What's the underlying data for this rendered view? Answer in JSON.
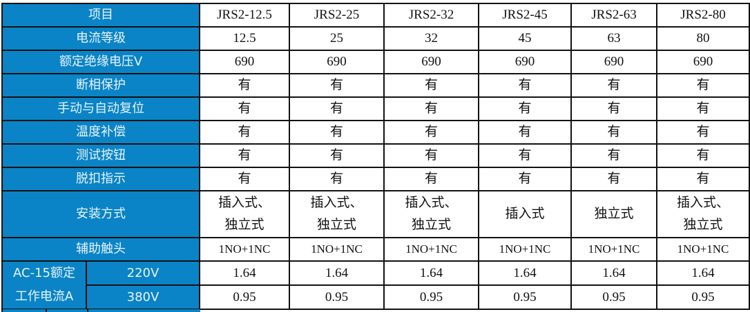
{
  "header": {
    "label": "项目",
    "models": [
      "JRS2-12.5",
      "JRS2-25",
      "JRS2-32",
      "JRS2-45",
      "JRS2-63",
      "JRS2-80"
    ]
  },
  "rows": [
    {
      "label": "电流等级",
      "values": [
        "12.5",
        "25",
        "32",
        "45",
        "63",
        "80"
      ]
    },
    {
      "label": "额定绝缘电压V",
      "values": [
        "690",
        "690",
        "690",
        "690",
        "690",
        "690"
      ]
    },
    {
      "label": "断相保护",
      "values": [
        "有",
        "有",
        "有",
        "有",
        "有",
        "有"
      ]
    },
    {
      "label": "手动与自动复位",
      "values": [
        "有",
        "有",
        "有",
        "有",
        "有",
        "有"
      ]
    },
    {
      "label": "温度补偿",
      "values": [
        "有",
        "有",
        "有",
        "有",
        "有",
        "有"
      ]
    },
    {
      "label": "测试按钮",
      "values": [
        "有",
        "有",
        "有",
        "有",
        "有",
        "有"
      ]
    },
    {
      "label": "脱扣指示",
      "values": [
        "有",
        "有",
        "有",
        "有",
        "有",
        "有"
      ]
    }
  ],
  "install": {
    "label": "安装方式",
    "values": [
      [
        "插入式、",
        "独立式"
      ],
      [
        "插入式、",
        "独立式"
      ],
      [
        "插入式、",
        "独立式"
      ],
      [
        "插入式",
        ""
      ],
      [
        "独立式",
        ""
      ],
      [
        "插入式、",
        "独立式"
      ]
    ]
  },
  "aux": {
    "label": "辅助触头",
    "values": [
      "1NO+1NC",
      "1NO+1NC",
      "1NO+1NC",
      "1NO+1NC",
      "1NO+1NC",
      "1NO+1NC"
    ]
  },
  "ac15": {
    "label_line1": "AC-15额定",
    "label_line2": "工作电流A",
    "rows": [
      {
        "voltage": "220V",
        "values": [
          "1.64",
          "1.64",
          "1.64",
          "1.64",
          "1.64",
          "1.64"
        ]
      },
      {
        "voltage": "380V",
        "values": [
          "0.95",
          "0.95",
          "0.95",
          "0.95",
          "0.95",
          "0.95"
        ]
      }
    ]
  },
  "colors": {
    "header_bg": "#0a84c6",
    "header_text": "#e8f4fb",
    "border": "#111111"
  }
}
